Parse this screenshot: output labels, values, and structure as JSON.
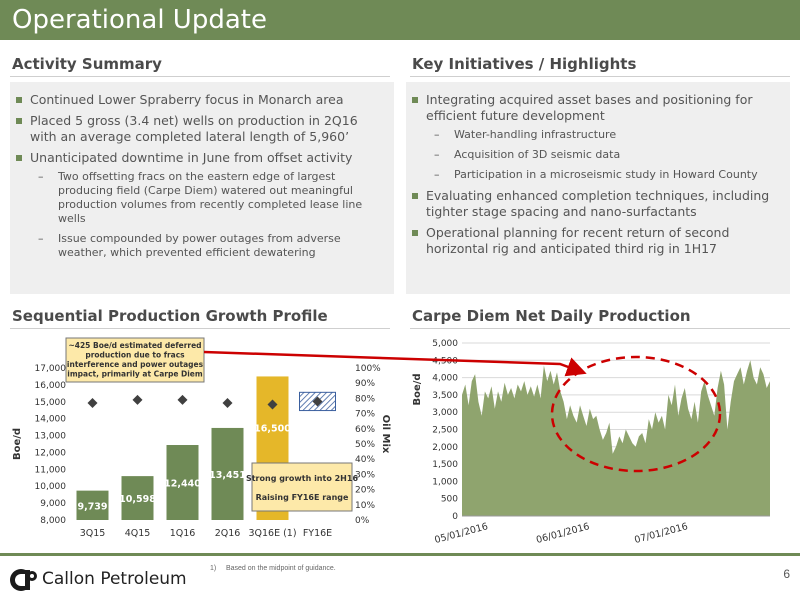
{
  "header": {
    "title": "Operational Update"
  },
  "activity": {
    "heading": "Activity Summary",
    "bullets": [
      {
        "text": "Continued Lower Spraberry focus in Monarch area"
      },
      {
        "text": "Placed 5 gross (3.4 net) wells on production in 2Q16 with an average completed lateral length of 5,960’"
      },
      {
        "text": "Unanticipated downtime in June from offset activity",
        "subs": [
          "Two offsetting fracs on the eastern edge of largest producing field (Carpe Diem) watered out meaningful production volumes from recently completed lease line wells",
          "Issue compounded by power outages from adverse weather, which prevented efficient dewatering"
        ]
      }
    ]
  },
  "initiatives": {
    "heading": "Key Initiatives / Highlights",
    "bullets": [
      {
        "text": "Integrating acquired asset bases and positioning for efficient future development",
        "subs": [
          "Water-handling infrastructure",
          "Acquisition of 3D seismic data",
          "Participation in a microseismic study in Howard County"
        ]
      },
      {
        "text": "Evaluating enhanced completion techniques, including tighter stage spacing and nano-surfactants"
      },
      {
        "text": "Operational planning for recent return of second horizontal rig and anticipated third rig in 1H17"
      }
    ]
  },
  "charts": {
    "left_heading": "Sequential Production Growth Profile",
    "right_heading": "Carpe Diem Net Daily Production"
  },
  "chart_data": [
    {
      "type": "bar",
      "categories": [
        "3Q15",
        "4Q15",
        "1Q16",
        "2Q16",
        "3Q16E (1)",
        "FY16E"
      ],
      "values": [
        9739,
        10598,
        12440,
        13451,
        16500,
        null
      ],
      "value_labels": [
        "9,739",
        "10,598",
        "12,440",
        "13,451",
        "16,500",
        ""
      ],
      "oil_mix_pct": [
        77,
        79,
        79,
        77,
        76,
        78
      ],
      "ylabel": "Boe/d",
      "y2label": "Oil Mix",
      "ylim": [
        8000,
        17000
      ],
      "yticks": [
        "8,000",
        "9,000",
        "10,000",
        "11,000",
        "12,000",
        "13,000",
        "14,000",
        "15,000",
        "16,000",
        "17,000"
      ],
      "y2lim": [
        0,
        100
      ],
      "y2ticks": [
        "0%",
        "10%",
        "20%",
        "30%",
        "40%",
        "50%",
        "60%",
        "70%",
        "80%",
        "90%",
        "100%"
      ],
      "annotation_top": "~425 Boe/d estimated deferred production due to fracs interference and power outages impact, primarily at Carpe Diem",
      "annotation_bottom_1": "Strong growth into 2H16",
      "annotation_bottom_2": "Raising FY16E range",
      "colors": {
        "bar": "#6f8a56",
        "forecast": "#e5b729",
        "marker": "#404040"
      }
    },
    {
      "type": "area",
      "ylabel": "Boe/d",
      "ylim": [
        0,
        5000
      ],
      "yticks": [
        "0",
        "500",
        "1,000",
        "1,500",
        "2,000",
        "2,500",
        "3,000",
        "3,500",
        "4,000",
        "4,500",
        "5,000"
      ],
      "xtick_labels": [
        "05/01/2016",
        "06/01/2016",
        "07/01/2016"
      ],
      "x_day_offsets": [
        0,
        31,
        61
      ],
      "values": [
        3500,
        3800,
        3200,
        3900,
        4100,
        3300,
        2900,
        3600,
        3400,
        3750,
        3100,
        3600,
        3300,
        3850,
        3500,
        3700,
        3400,
        3800,
        3600,
        3900,
        3500,
        3750,
        3450,
        3800,
        3400,
        4350,
        3900,
        4200,
        3800,
        4150,
        3600,
        3300,
        2800,
        3200,
        2900,
        2700,
        3200,
        2900,
        2600,
        3100,
        2800,
        2900,
        2500,
        2200,
        2400,
        2700,
        1800,
        2000,
        2300,
        2100,
        2500,
        2300,
        2100,
        2000,
        2300,
        2400,
        2100,
        2800,
        2500,
        3000,
        2700,
        2900,
        2500,
        3500,
        3200,
        3800,
        2900,
        3400,
        3700,
        3100,
        2800,
        3300,
        2700,
        3600,
        3900,
        3500,
        3200,
        2900,
        3700,
        4200,
        3800,
        2500,
        3300,
        3900,
        4100,
        4300,
        3800,
        4200,
        4500,
        4000,
        3800,
        4300,
        4100,
        3700,
        3900
      ],
      "colors": {
        "area": "#8fa46e",
        "ellipse": "#cc0000"
      }
    }
  ],
  "footer": {
    "footnote_num": "1)",
    "footnote": "Based on the midpoint of guidance.",
    "company": "Callon Petroleum",
    "page": "6"
  }
}
